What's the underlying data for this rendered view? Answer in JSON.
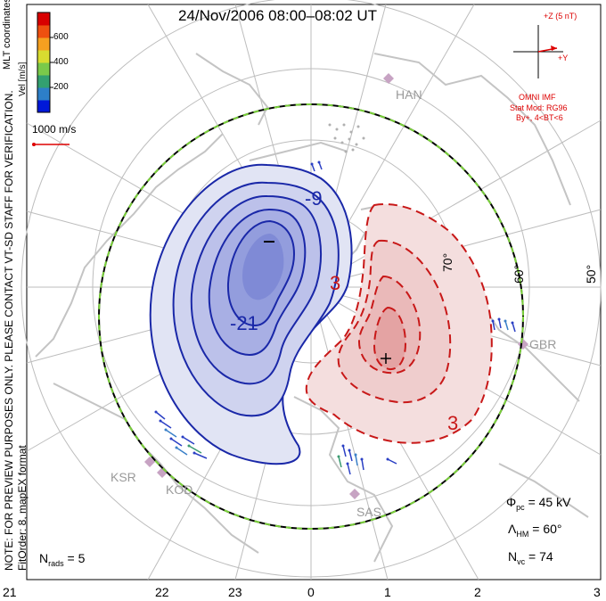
{
  "title": "24/Nov/2006  08:00–08:02  UT",
  "colorbar": {
    "title": "MLT coordinates",
    "unit": "Vel [m/s]",
    "ticks": [
      "600",
      "400",
      "200"
    ],
    "colors": [
      "#0018d8",
      "#2d7fc8",
      "#33a070",
      "#7ac94a",
      "#d8dc30",
      "#f5a020",
      "#ee5010",
      "#d80000"
    ]
  },
  "reference_vector": "1000 m/s",
  "note_line1": "NOTE: FOR PREVIEW PURPOSES ONLY. PLEASE CONTACT VT-SD STAFF FOR VERIFICATION.",
  "note_line2": "FitOrder: 8, mapEX format",
  "imf": {
    "field": "+Z (5 nT)",
    "y_axis": "+Y",
    "source": "OMNI IMF",
    "model": "Stat Mod: RG96",
    "condition": "By+, 4<BT<6"
  },
  "stats": {
    "phi_pc_label": "Φ",
    "phi_pc_sub": "pc",
    "phi_pc_value": " = 45 kV",
    "lambda_label": "Λ",
    "lambda_sub": "HM",
    "lambda_value": " = 60°",
    "nvc_label": "N",
    "nvc_sub": "vc",
    "nvc_value": " = 74",
    "nrads_label": "N",
    "nrads_sub": "rads",
    "nrads_value": " = 5"
  },
  "contours": {
    "negative_labels": [
      "-9",
      "-21"
    ],
    "positive_labels": [
      "3",
      "3"
    ],
    "min_marker": "–",
    "max_marker": "+",
    "negative_color": "#1a28a8",
    "positive_color": "#c81818"
  },
  "latitude_labels": [
    "70°",
    "60°",
    "50°"
  ],
  "mlt_labels": [
    "21",
    "22",
    "23",
    "0",
    "1",
    "2",
    "3"
  ],
  "stations": [
    "HAN",
    "GBR",
    "KSR",
    "KOD",
    "SAS"
  ]
}
